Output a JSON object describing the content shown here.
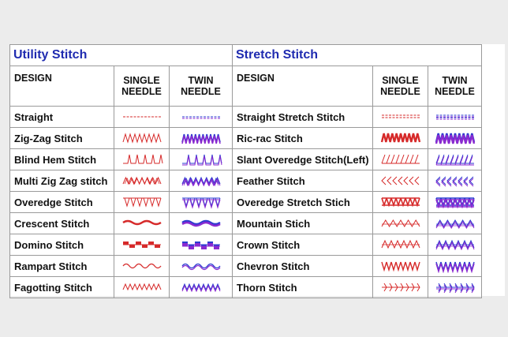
{
  "utility": {
    "title": "Utility Stitch",
    "header": {
      "design": "DESIGN",
      "single": [
        "SINGLE",
        "NEEDLE"
      ],
      "twin": [
        "TWIN",
        "NEEDLE"
      ]
    },
    "rows": [
      {
        "name": "Straight",
        "pattern": "straight"
      },
      {
        "name": "Zig-Zag Stitch",
        "pattern": "zigzag"
      },
      {
        "name": "Blind Hem Stitch",
        "pattern": "blindhem"
      },
      {
        "name": "Multi Zig Zag stitch",
        "pattern": "multizigzag"
      },
      {
        "name": "Overedge Stitch",
        "pattern": "overedge"
      },
      {
        "name": "Crescent Stitch",
        "pattern": "crescent"
      },
      {
        "name": "Domino Stitch",
        "pattern": "domino"
      },
      {
        "name": "Rampart Stitch",
        "pattern": "rampart"
      },
      {
        "name": "Fagotting Stitch",
        "pattern": "fagotting"
      }
    ]
  },
  "stretch": {
    "title": "Stretch Stitch",
    "header": {
      "design": "DESIGN",
      "single": [
        "SINGLE",
        "NEEDLE"
      ],
      "twin": [
        "TWIN",
        "NEEDLE"
      ]
    },
    "rows": [
      {
        "name": "Straight Stretch Stitch",
        "pattern": "straightstretch"
      },
      {
        "name": "Ric-rac Stitch",
        "pattern": "ricrac"
      },
      {
        "name": "Slant Overedge Stitch(Left)",
        "pattern": "slant"
      },
      {
        "name": "Feather Stitch",
        "pattern": "feather"
      },
      {
        "name": "Overedge Stretch Stich",
        "pattern": "overedgestretch"
      },
      {
        "name": "Mountain Stich",
        "pattern": "mountain"
      },
      {
        "name": "Crown Stitch",
        "pattern": "crown"
      },
      {
        "name": "Chevron Stitch",
        "pattern": "chevron"
      },
      {
        "name": "Thorn Stitch",
        "pattern": "thorn"
      }
    ]
  },
  "colors": {
    "thread_red": "#d62a2a",
    "thread_blue": "#2a3bd0",
    "thread_purple": "#8a2ad0",
    "title_blue": "#1f2bb0"
  }
}
